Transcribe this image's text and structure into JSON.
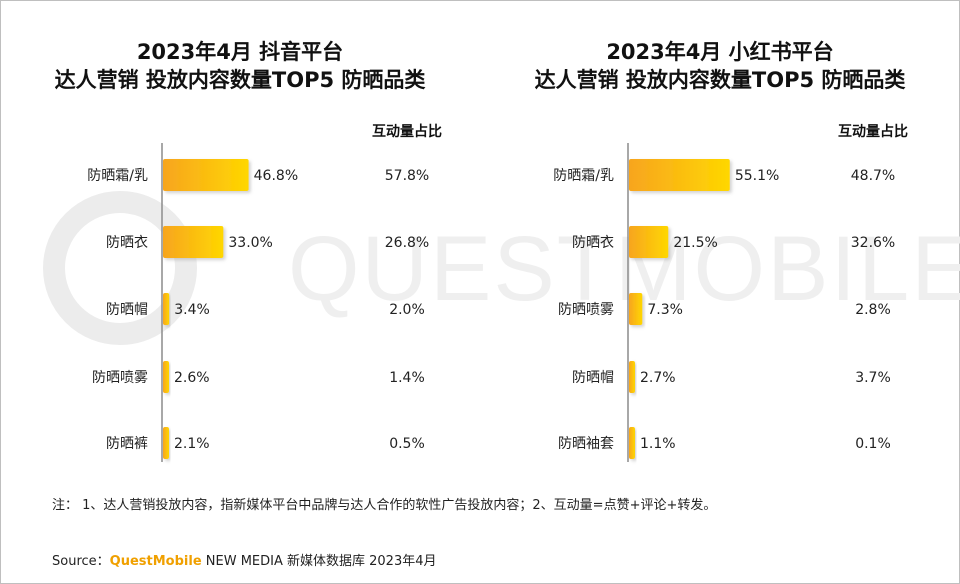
{
  "watermark_text": "QUESTMOBILE",
  "colors": {
    "bar_start": "#f7a51f",
    "bar_end": "#ffd700",
    "axis": "#8c8c8c",
    "watermark": "#ececec",
    "brand": "#f0a000"
  },
  "chart_data": [
    {
      "type": "bar",
      "orientation": "horizontal",
      "title_line1": "2023年4月 抖音平台",
      "title_line2": "达人营销 投放内容数量TOP5 防晒品类",
      "share_header": "互动量占比",
      "categories": [
        "防晒霜/乳",
        "防晒衣",
        "防晒帽",
        "防晒喷雾",
        "防晒裤"
      ],
      "values": [
        46.8,
        33.0,
        3.4,
        2.6,
        2.1
      ],
      "value_labels": [
        "46.8%",
        "33.0%",
        "3.4%",
        "2.6%",
        "2.1%"
      ],
      "interaction_share": [
        "57.8%",
        "26.8%",
        "2.0%",
        "1.4%",
        "0.5%"
      ]
    },
    {
      "type": "bar",
      "orientation": "horizontal",
      "title_line1": "2023年4月 小红书平台",
      "title_line2": "达人营销 投放内容数量TOP5 防晒品类",
      "share_header": "互动量占比",
      "categories": [
        "防晒霜/乳",
        "防晒衣",
        "防晒喷雾",
        "防晒帽",
        "防晒袖套"
      ],
      "values": [
        55.1,
        21.5,
        7.3,
        2.7,
        1.1
      ],
      "value_labels": [
        "55.1%",
        "21.5%",
        "7.3%",
        "2.7%",
        "1.1%"
      ],
      "interaction_share": [
        "48.7%",
        "32.6%",
        "2.8%",
        "3.7%",
        "0.1%"
      ]
    }
  ],
  "footer": {
    "note": "注：  1、达人营销投放内容，指新媒体平台中品牌与达人合作的软性广告投放内容；2、互动量=点赞+评论+转发。",
    "source_prefix": "Source：",
    "source_brand": "QuestMobile",
    "source_suffix": " NEW MEDIA 新媒体数据库 2023年4月"
  }
}
